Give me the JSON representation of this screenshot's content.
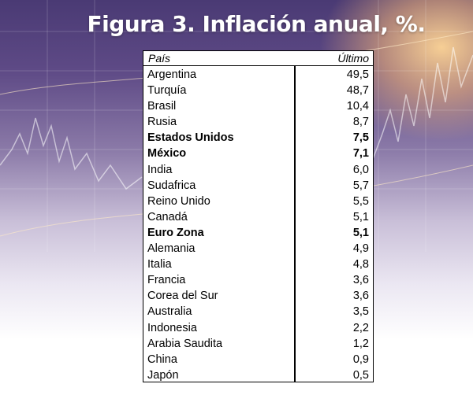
{
  "chart_data": {
    "type": "table",
    "title": "Figura 3. Inflación anual, %.",
    "columns": [
      "País",
      "Último"
    ],
    "rows": [
      {
        "country": "Argentina",
        "value": "49,5",
        "bold": false
      },
      {
        "country": "Turquía",
        "value": "48,7",
        "bold": false
      },
      {
        "country": "Brasil",
        "value": "10,4",
        "bold": false
      },
      {
        "country": "Rusia",
        "value": "8,7",
        "bold": false
      },
      {
        "country": "Estados Unidos",
        "value": "7,5",
        "bold": true
      },
      {
        "country": "México",
        "value": "7,1",
        "bold": true
      },
      {
        "country": "India",
        "value": "6,0",
        "bold": false
      },
      {
        "country": "Sudafrica",
        "value": "5,7",
        "bold": false
      },
      {
        "country": "Reino Unido",
        "value": "5,5",
        "bold": false
      },
      {
        "country": "Canadá",
        "value": "5,1",
        "bold": false
      },
      {
        "country": "Euro Zona",
        "value": "5,1",
        "bold": true
      },
      {
        "country": "Alemania",
        "value": "4,9",
        "bold": false
      },
      {
        "country": "Italia",
        "value": "4,8",
        "bold": false
      },
      {
        "country": "Francia",
        "value": "3,6",
        "bold": false
      },
      {
        "country": "Corea del Sur",
        "value": "3,6",
        "bold": false
      },
      {
        "country": "Australia",
        "value": "3,5",
        "bold": false
      },
      {
        "country": "Indonesia",
        "value": "2,2",
        "bold": false
      },
      {
        "country": "Arabia Saudita",
        "value": "1,2",
        "bold": false
      },
      {
        "country": "China",
        "value": "0,9",
        "bold": false
      },
      {
        "country": "Japón",
        "value": "0,5",
        "bold": false
      }
    ]
  },
  "background": {
    "colors": {
      "top": "#4a3a74",
      "mid": "#8b7aa8",
      "bottom": "#ffffff",
      "glow": "#ffd696"
    }
  }
}
